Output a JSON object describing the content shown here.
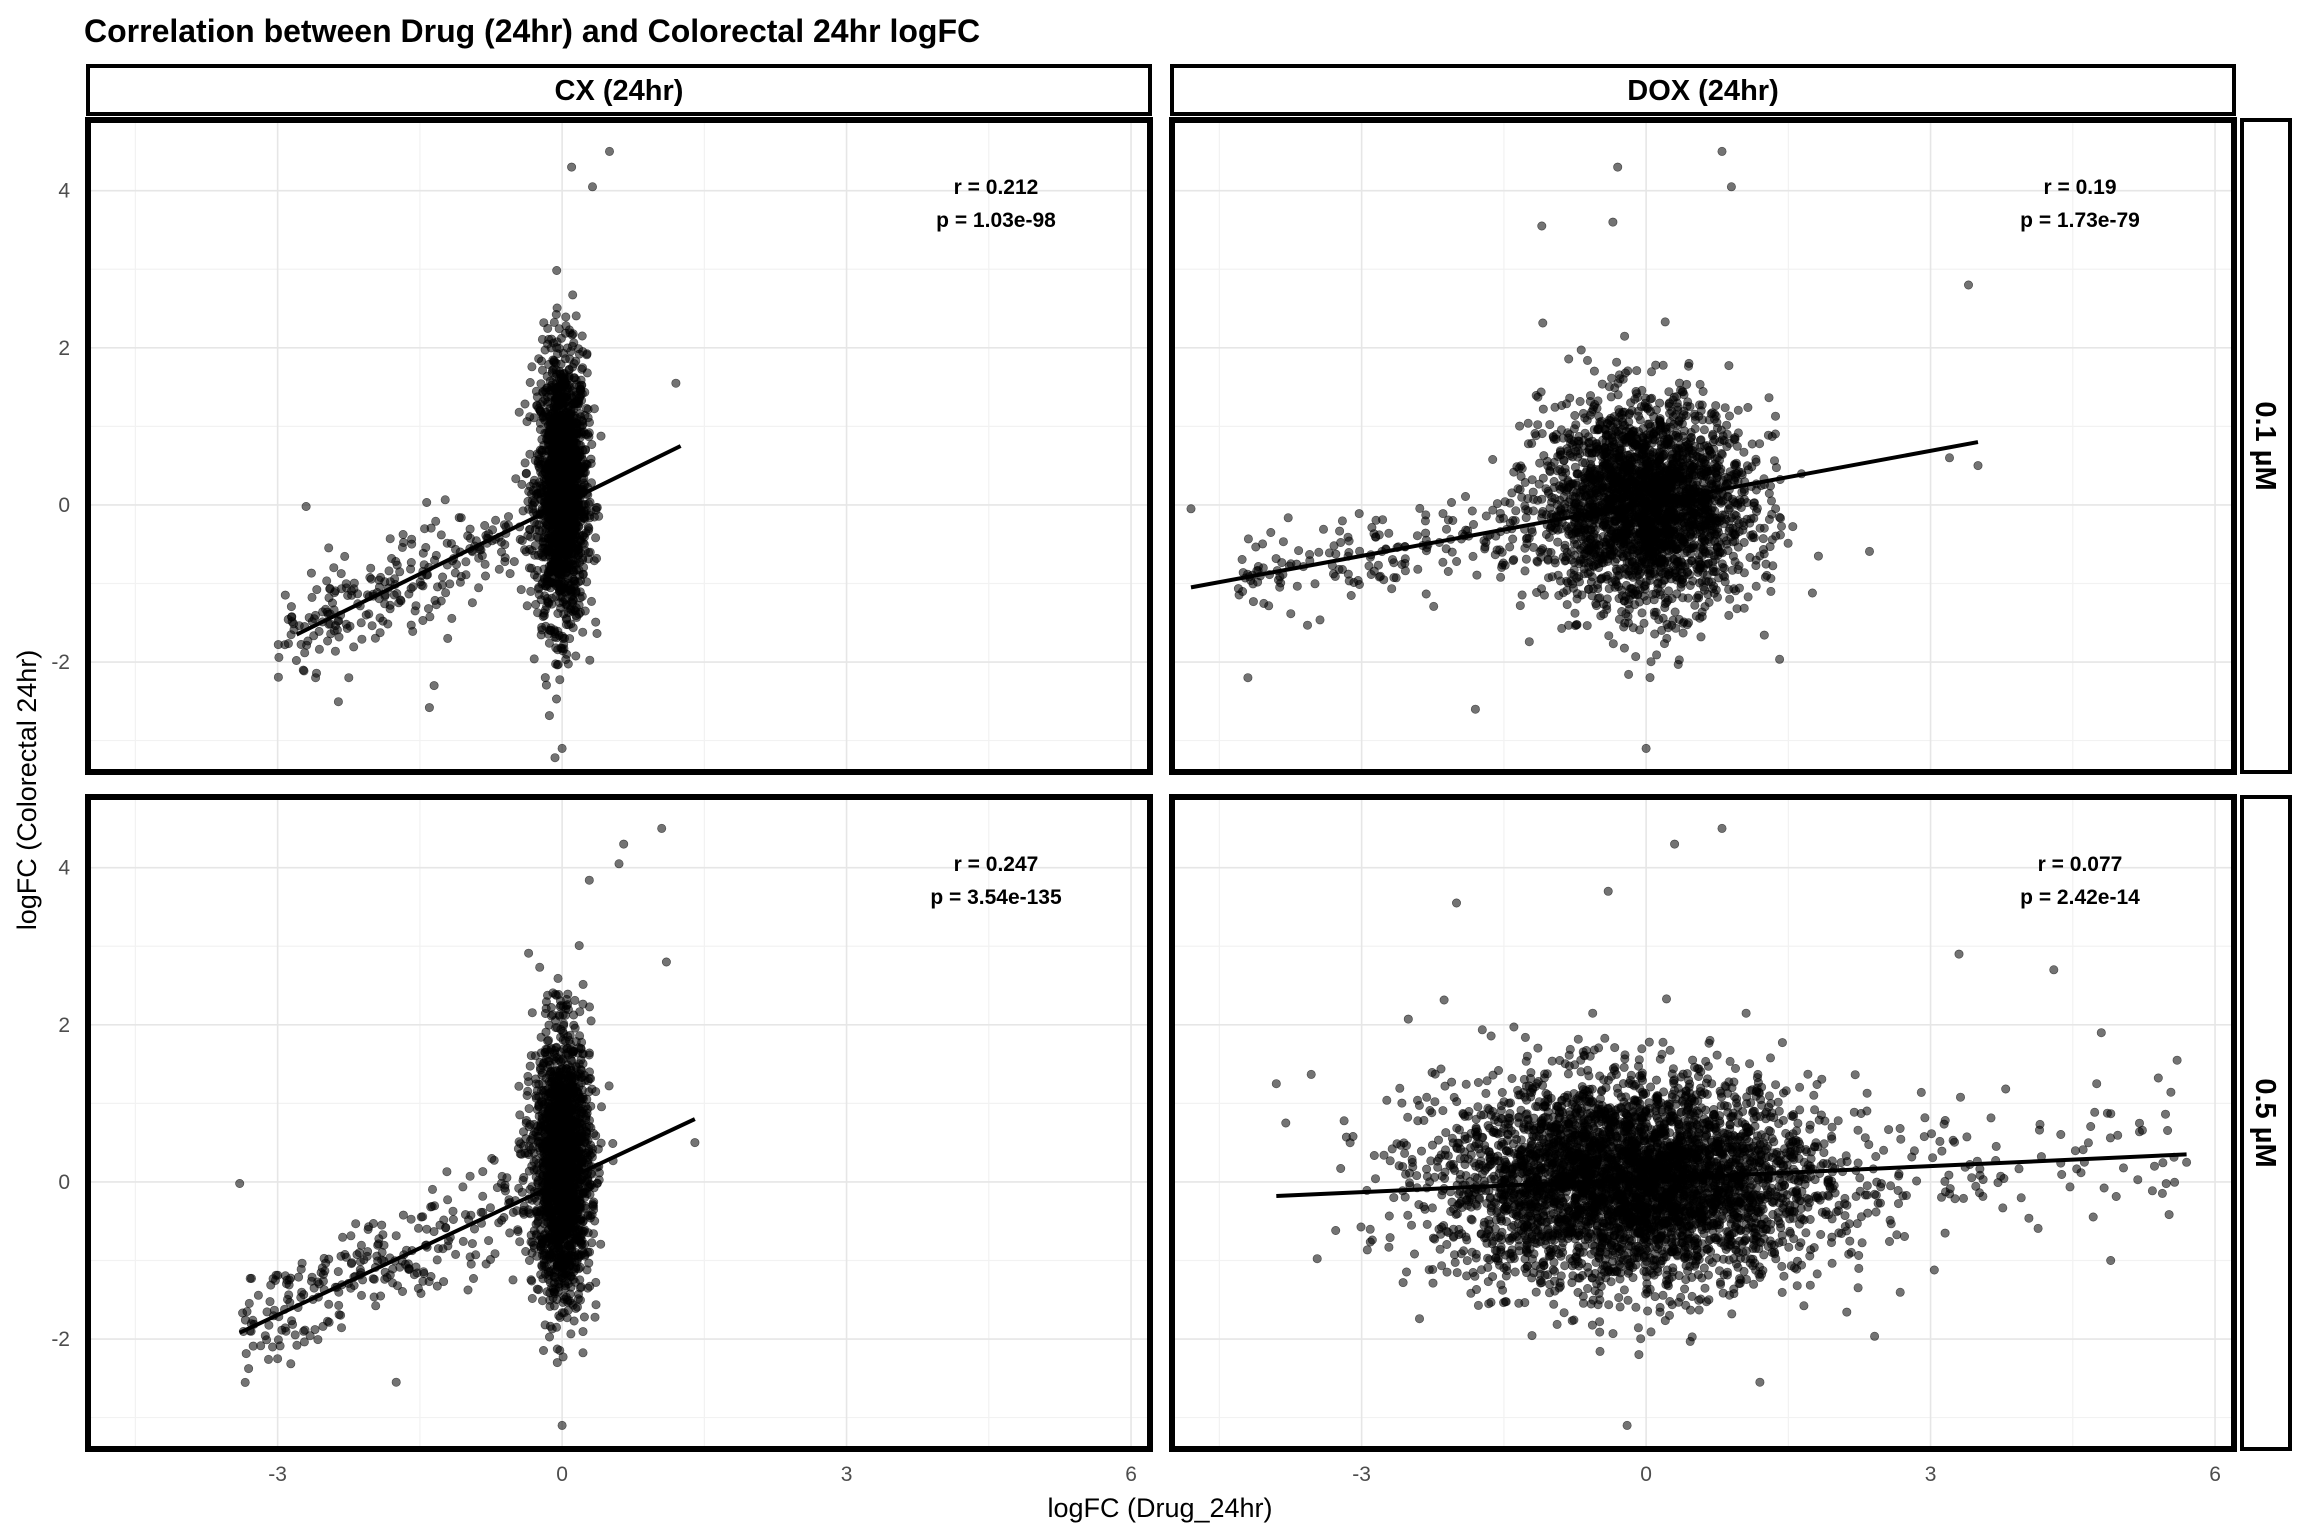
{
  "chart_data": {
    "type": "scatter",
    "title": "Correlation between Drug (24hr) and Colorectal 24hr logFC",
    "xlabel": "logFC (Drug_24hr)",
    "ylabel": "logFC (Colorectal 24hr)",
    "xlim": [
      -5,
      6.2
    ],
    "ylim": [
      -3.4,
      4.9
    ],
    "x_ticks": [
      -3,
      0,
      3,
      6
    ],
    "y_ticks": [
      -2,
      0,
      2,
      4
    ],
    "x_tick_labels": [
      "-3",
      "0",
      "3",
      "6"
    ],
    "y_tick_labels": [
      "-2",
      "0",
      "2",
      "4"
    ],
    "grid": true,
    "facet_columns": [
      "CX (24hr)",
      "DOX (24hr)"
    ],
    "facet_rows": [
      "0.1 µM",
      "0.5 µM"
    ],
    "panels": [
      {
        "column": "CX (24hr)",
        "row": "0.1 µM",
        "r_label": "r = 0.212",
        "p_label": "p = 1.03e-98",
        "fit": {
          "x": [
            -2.8,
            1.25
          ],
          "y": [
            -1.65,
            0.75
          ]
        },
        "x_center": 0.0,
        "x_spread": 0.13,
        "y_center": 0.2,
        "y_spread": 0.85,
        "n_points": 1800,
        "tail": {
          "x_min": -3.0,
          "x_max": -0.3,
          "slope": 0.59,
          "noise": 0.55,
          "n": 240
        },
        "outliers": [
          {
            "x": -2.7,
            "y": -0.02
          },
          {
            "x": -2.6,
            "y": -2.2
          },
          {
            "x": -1.35,
            "y": -2.3
          },
          {
            "x": -1.4,
            "y": -2.58
          },
          {
            "x": 0.1,
            "y": 4.3
          },
          {
            "x": 0.5,
            "y": 4.5
          },
          {
            "x": 0.32,
            "y": 4.05
          },
          {
            "x": 1.2,
            "y": 1.55
          },
          {
            "x": 0.0,
            "y": -3.1
          }
        ]
      },
      {
        "column": "DOX (24hr)",
        "row": "0.1 µM",
        "r_label": "r = 0.19",
        "p_label": "p = 1.73e-79",
        "fit": {
          "x": [
            -4.8,
            3.5
          ],
          "y": [
            -1.05,
            0.8
          ]
        },
        "x_center": 0.0,
        "x_spread": 0.55,
        "y_center": 0.0,
        "y_spread": 0.65,
        "n_points": 2600,
        "tail": {
          "x_min": -4.3,
          "x_max": -1.2,
          "slope": 0.22,
          "noise": 0.45,
          "n": 180
        },
        "outliers": [
          {
            "x": -4.8,
            "y": -0.05
          },
          {
            "x": -4.2,
            "y": -2.2
          },
          {
            "x": -1.8,
            "y": -2.6
          },
          {
            "x": -0.3,
            "y": 4.3
          },
          {
            "x": 0.8,
            "y": 4.5
          },
          {
            "x": 0.9,
            "y": 4.05
          },
          {
            "x": -0.35,
            "y": 3.6
          },
          {
            "x": -1.1,
            "y": 3.55
          },
          {
            "x": 3.4,
            "y": 2.8
          },
          {
            "x": 0.0,
            "y": -3.1
          },
          {
            "x": 3.5,
            "y": 0.5
          },
          {
            "x": 3.2,
            "y": 0.6
          }
        ]
      },
      {
        "column": "CX (24hr)",
        "row": "0.5 µM",
        "r_label": "r = 0.247",
        "p_label": "p = 3.54e-135",
        "fit": {
          "x": [
            -3.4,
            1.4
          ],
          "y": [
            -1.92,
            0.8
          ]
        },
        "x_center": 0.0,
        "x_spread": 0.15,
        "y_center": 0.2,
        "y_spread": 0.85,
        "n_points": 1800,
        "tail": {
          "x_min": -3.4,
          "x_max": -0.3,
          "slope": 0.57,
          "noise": 0.55,
          "n": 260
        },
        "outliers": [
          {
            "x": -3.4,
            "y": -0.02
          },
          {
            "x": -3.0,
            "y": -2.25
          },
          {
            "x": -1.75,
            "y": -2.55
          },
          {
            "x": 0.6,
            "y": 4.05
          },
          {
            "x": 0.65,
            "y": 4.3
          },
          {
            "x": 1.05,
            "y": 4.5
          },
          {
            "x": 1.1,
            "y": 2.8
          },
          {
            "x": 0.0,
            "y": -3.1
          },
          {
            "x": 1.4,
            "y": 0.5
          }
        ]
      },
      {
        "column": "DOX (24hr)",
        "row": "0.5 µM",
        "r_label": "r = 0.077",
        "p_label": "p = 2.42e-14",
        "fit": {
          "x": [
            -3.9,
            5.7
          ],
          "y": [
            -0.18,
            0.35
          ]
        },
        "x_center": -0.15,
        "x_spread": 1.0,
        "y_center": 0.0,
        "y_spread": 0.65,
        "n_points": 4200,
        "tail": {
          "x_min": 2.5,
          "x_max": 5.6,
          "slope": 0.05,
          "noise": 0.7,
          "n": 90
        },
        "outliers": [
          {
            "x": -3.9,
            "y": 1.25
          },
          {
            "x": -3.8,
            "y": 0.75
          },
          {
            "x": 0.8,
            "y": 4.5
          },
          {
            "x": 0.3,
            "y": 4.3
          },
          {
            "x": -0.4,
            "y": 3.7
          },
          {
            "x": -2.0,
            "y": 3.55
          },
          {
            "x": 3.3,
            "y": 2.9
          },
          {
            "x": 4.3,
            "y": 2.7
          },
          {
            "x": 4.8,
            "y": 1.9
          },
          {
            "x": 5.7,
            "y": 0.25
          },
          {
            "x": 5.6,
            "y": 1.55
          },
          {
            "x": -0.2,
            "y": -3.1
          },
          {
            "x": 1.2,
            "y": -2.55
          },
          {
            "x": 4.9,
            "y": -1.0
          }
        ]
      }
    ]
  }
}
